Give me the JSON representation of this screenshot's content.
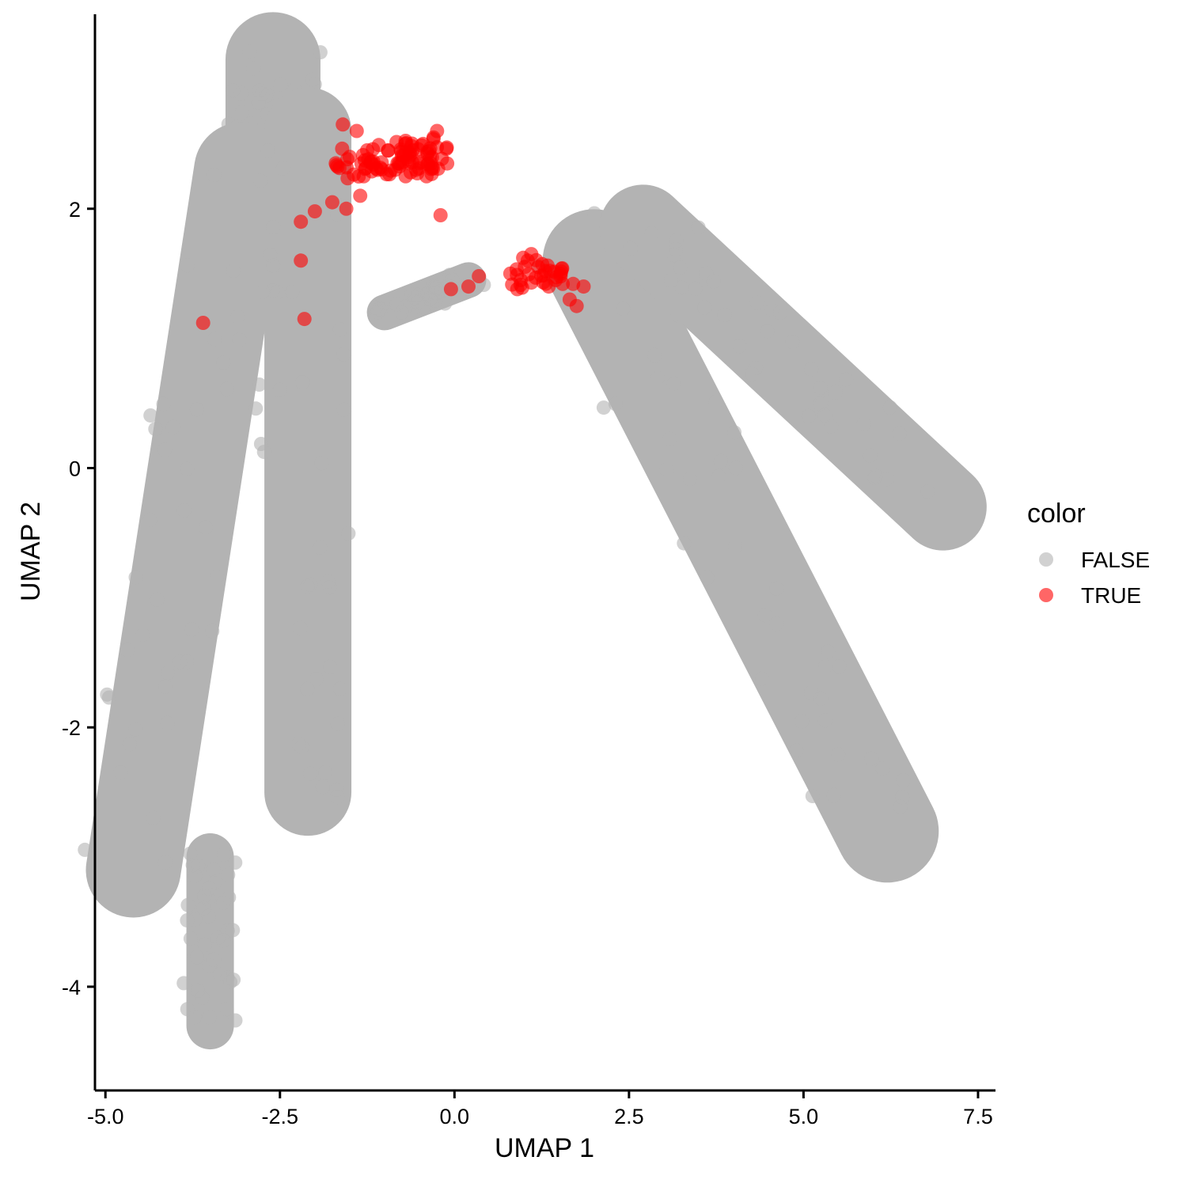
{
  "chart_data": {
    "type": "scatter",
    "xlabel": "UMAP 1",
    "ylabel": "UMAP 2",
    "xlim": [
      -5.15,
      7.75
    ],
    "ylim": [
      -4.8,
      3.5
    ],
    "x_ticks": [
      -5.0,
      -2.5,
      0.0,
      2.5,
      5.0,
      7.5
    ],
    "x_tick_labels": [
      "-5.0",
      "-2.5",
      "0.0",
      "2.5",
      "5.0",
      "7.5"
    ],
    "y_ticks": [
      -4,
      -2,
      0,
      2
    ],
    "y_tick_labels": [
      "-4",
      "-2",
      "0",
      "2"
    ],
    "grid": false,
    "legend": {
      "title": "color",
      "placement": "right",
      "entries": [
        {
          "label": "FALSE",
          "color": "#b3b3b3"
        },
        {
          "label": "TRUE",
          "color": "#ff0000"
        }
      ]
    },
    "point_alpha": 0.6,
    "series": [
      {
        "name": "FALSE",
        "color": "#b3b3b3",
        "description_regions": [
          {
            "x": [
              -2.6,
              -2.6
            ],
            "y": [
              3.15,
              2.4
            ]
          },
          {
            "x": [
              -3.05,
              -4.6
            ],
            "y": [
              2.3,
              -3.1
            ]
          },
          {
            "x": [
              -2.1,
              -2.1
            ],
            "y": [
              2.6,
              -2.5
            ]
          },
          {
            "x": [
              -3.5,
              -3.5
            ],
            "y": [
              -3.0,
              -4.3
            ]
          },
          {
            "x": [
              -1.0,
              0.2
            ],
            "y": [
              1.2,
              1.45
            ]
          },
          {
            "x": [
              2.0,
              6.2
            ],
            "y": [
              1.6,
              -2.8
            ]
          },
          {
            "x": [
              2.7,
              7.0
            ],
            "y": [
              1.85,
              -0.3
            ]
          }
        ]
      },
      {
        "name": "TRUE",
        "color": "#ff0000",
        "points": [
          [
            -1.25,
            2.45
          ],
          [
            -1.1,
            2.3
          ],
          [
            -1.4,
            2.6
          ],
          [
            -1.6,
            2.65
          ],
          [
            -1.7,
            2.35
          ],
          [
            -1.3,
            2.25
          ],
          [
            -1.5,
            2.4
          ],
          [
            -1.35,
            2.1
          ],
          [
            -1.55,
            2.0
          ],
          [
            -1.75,
            2.05
          ],
          [
            -2.0,
            1.98
          ],
          [
            -2.2,
            1.9
          ],
          [
            -2.2,
            1.6
          ],
          [
            -0.95,
            2.45
          ],
          [
            -0.8,
            2.35
          ],
          [
            -0.6,
            2.45
          ],
          [
            -0.45,
            2.5
          ],
          [
            -0.3,
            2.55
          ],
          [
            -0.25,
            2.6
          ],
          [
            -0.35,
            2.4
          ],
          [
            -0.55,
            2.3
          ],
          [
            -0.7,
            2.25
          ],
          [
            -0.85,
            2.3
          ],
          [
            -0.4,
            2.25
          ],
          [
            -0.5,
            2.35
          ],
          [
            -0.65,
            2.4
          ],
          [
            -0.2,
            1.95
          ],
          [
            -0.05,
            1.38
          ],
          [
            0.2,
            1.4
          ],
          [
            0.35,
            1.48
          ],
          [
            0.8,
            1.5
          ],
          [
            0.95,
            1.45
          ],
          [
            1.05,
            1.6
          ],
          [
            1.1,
            1.65
          ],
          [
            1.2,
            1.55
          ],
          [
            1.3,
            1.52
          ],
          [
            1.45,
            1.45
          ],
          [
            1.55,
            1.42
          ],
          [
            1.7,
            1.42
          ],
          [
            1.85,
            1.4
          ],
          [
            1.65,
            1.3
          ],
          [
            1.75,
            1.25
          ],
          [
            0.9,
            1.38
          ],
          [
            1.35,
            1.4
          ],
          [
            -3.6,
            1.12
          ],
          [
            -2.15,
            1.15
          ]
        ]
      }
    ]
  }
}
